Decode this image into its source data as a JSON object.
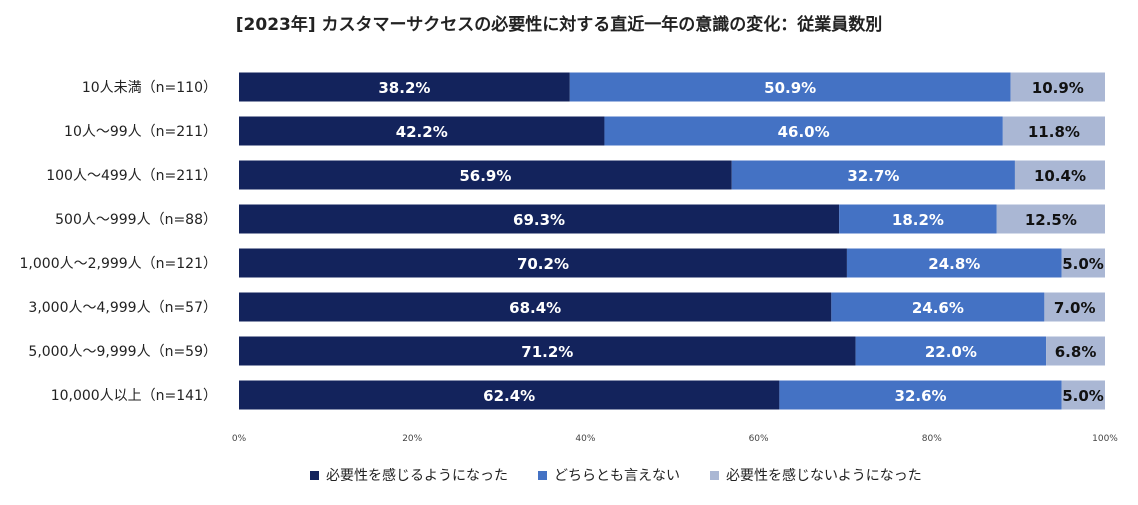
{
  "chart_data": {
    "type": "bar",
    "orientation": "horizontal",
    "stacked": true,
    "title": "[2023年] カスタマーサクセスの必要性に対する直近一年の意識の変化：従業員数別",
    "categories": [
      "10人未満（n=110）",
      "10人～99人（n=211）",
      "100人～499人（n=211）",
      "500人～999人（n=88）",
      "1,000人～2,999人（n=121）",
      "3,000人～4,999人（n=57）",
      "5,000人～9,999人（n=59）",
      "10,000人以上（n=141）"
    ],
    "series": [
      {
        "name": "必要性を感じるようになった",
        "color": "#13235c",
        "values": [
          38.2,
          42.2,
          56.9,
          69.3,
          70.2,
          68.4,
          71.2,
          62.4
        ],
        "labels": [
          "38.2%",
          "42.2%",
          "56.9%",
          "69.3%",
          "70.2%",
          "68.4%",
          "71.2%",
          "62.4%"
        ]
      },
      {
        "name": "どちらとも言えない",
        "color": "#4472c4",
        "values": [
          50.9,
          46.0,
          32.7,
          18.2,
          24.8,
          24.6,
          22.0,
          32.6
        ],
        "labels": [
          "50.9%",
          "46.0%",
          "32.7%",
          "18.2%",
          "24.8%",
          "24.6%",
          "22.0%",
          "32.6%"
        ]
      },
      {
        "name": "必要性を感じないようになった",
        "color": "#aab7d4",
        "values": [
          10.9,
          11.8,
          10.4,
          12.5,
          5.0,
          7.0,
          6.8,
          5.0
        ],
        "labels": [
          "10.9%",
          "11.8%",
          "10.4%",
          "12.5%",
          "5.0%",
          "7.0%",
          "6.8%",
          "5.0%"
        ]
      }
    ],
    "x_ticks": [
      "0%",
      "20%",
      "40%",
      "60%",
      "80%",
      "100%"
    ],
    "xlim": [
      0,
      100
    ],
    "legend": "bottom"
  }
}
